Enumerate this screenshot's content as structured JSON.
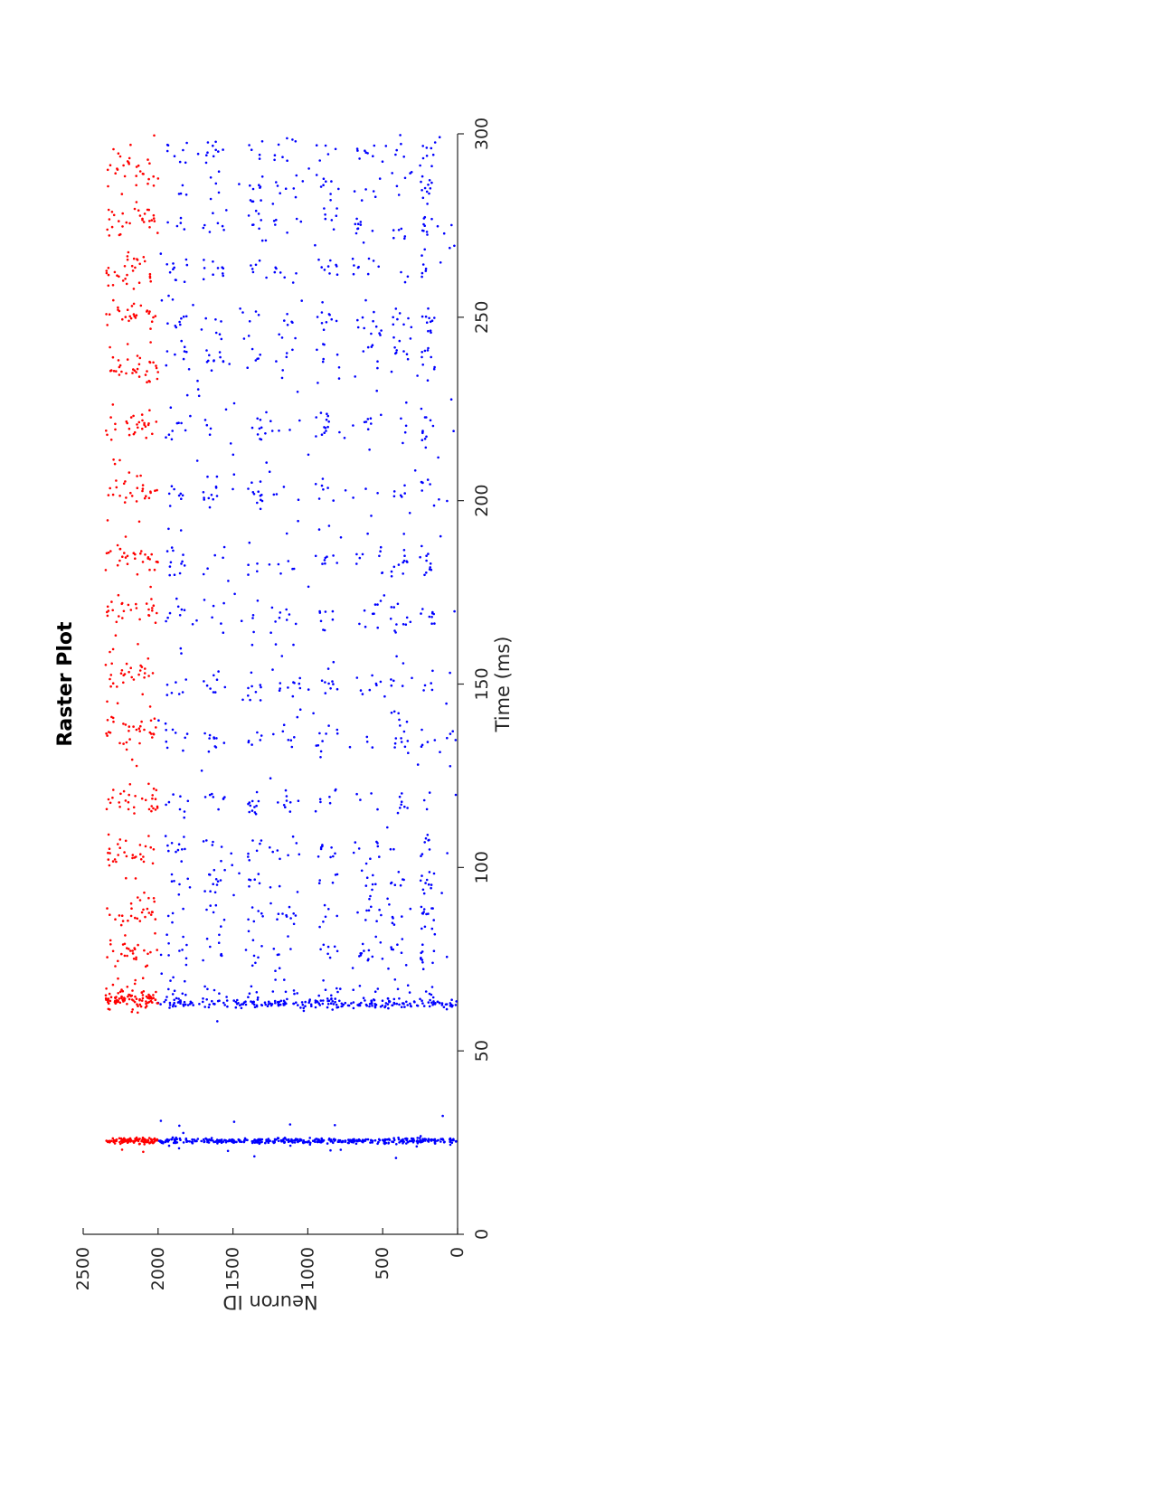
{
  "chart_data": {
    "type": "scatter",
    "title": "Raster Plot",
    "xlabel": "Time (ms)",
    "ylabel": "Neuron ID",
    "xlim": [
      0,
      300
    ],
    "ylim": [
      0,
      2500
    ],
    "xticks": [
      0,
      50,
      100,
      150,
      200,
      250,
      300
    ],
    "yticks": [
      0,
      500,
      1000,
      1500,
      2000,
      2500
    ],
    "orientation": "rotated 90 degrees clockwise",
    "grid": false,
    "legend": "none",
    "series": [
      {
        "color": "#0000ff",
        "neuron_range": [
          1,
          2000
        ],
        "population_burst_times": [
          25.5,
          63
        ],
        "sparse_spike_window": [
          60,
          300
        ],
        "active_neuron_bands": [
          [
            150,
            250
          ],
          [
            300,
            450
          ],
          [
            500,
            700
          ],
          [
            800,
            950
          ],
          [
            1050,
            1250
          ],
          [
            1300,
            1400
          ],
          [
            1550,
            1700
          ],
          [
            1800,
            1950
          ]
        ],
        "activity_clusters": [
          65,
          77,
          87,
          97,
          105,
          118,
          135,
          150,
          168,
          183,
          202,
          220,
          240,
          248,
          263,
          275,
          285,
          295
        ]
      },
      {
        "color": "#ff0000",
        "neuron_range": [
          2001,
          2350
        ],
        "population_burst_times": [
          25.5,
          64
        ],
        "sparse_spike_window": [
          60,
          300
        ],
        "active_neuron_bands": [
          [
            2000,
            2350
          ]
        ],
        "activity_clusters": [
          65,
          77,
          88,
          104,
          118,
          137,
          153,
          170,
          185,
          203,
          220,
          236,
          250,
          263,
          276,
          290
        ]
      }
    ]
  }
}
